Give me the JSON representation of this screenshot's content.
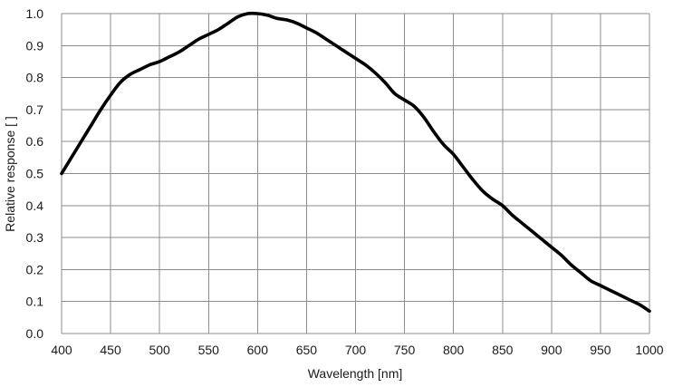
{
  "chart_data": {
    "type": "line",
    "xlabel": "Wavelength [nm]",
    "ylabel": "Relative response [ ]",
    "xlim": [
      400,
      1000
    ],
    "ylim": [
      0.0,
      1.0
    ],
    "grid": true,
    "x_ticks": [
      "400",
      "450",
      "500",
      "550",
      "600",
      "650",
      "700",
      "750",
      "800",
      "850",
      "900",
      "950",
      "1000"
    ],
    "y_ticks": [
      "0.0",
      "0.1",
      "0.2",
      "0.3",
      "0.4",
      "0.5",
      "0.6",
      "0.7",
      "0.8",
      "0.9",
      "1.0"
    ],
    "series": [
      {
        "color": "#000000",
        "x": [
          400,
          410,
          420,
          430,
          440,
          450,
          460,
          470,
          480,
          490,
          500,
          510,
          520,
          530,
          540,
          550,
          560,
          570,
          580,
          590,
          600,
          610,
          620,
          630,
          640,
          650,
          660,
          670,
          680,
          690,
          700,
          710,
          720,
          730,
          740,
          750,
          760,
          770,
          780,
          790,
          800,
          810,
          820,
          830,
          840,
          850,
          860,
          870,
          880,
          890,
          900,
          910,
          920,
          930,
          940,
          950,
          960,
          970,
          980,
          990,
          1000
        ],
        "y": [
          0.5,
          0.55,
          0.6,
          0.65,
          0.7,
          0.745,
          0.785,
          0.81,
          0.825,
          0.84,
          0.85,
          0.865,
          0.88,
          0.9,
          0.92,
          0.935,
          0.95,
          0.97,
          0.99,
          1.0,
          1.0,
          0.995,
          0.985,
          0.98,
          0.97,
          0.955,
          0.94,
          0.92,
          0.9,
          0.88,
          0.86,
          0.84,
          0.815,
          0.785,
          0.75,
          0.73,
          0.71,
          0.675,
          0.63,
          0.59,
          0.56,
          0.52,
          0.48,
          0.445,
          0.42,
          0.4,
          0.37,
          0.345,
          0.32,
          0.295,
          0.27,
          0.245,
          0.215,
          0.19,
          0.165,
          0.15,
          0.135,
          0.12,
          0.105,
          0.09,
          0.07
        ]
      }
    ]
  }
}
